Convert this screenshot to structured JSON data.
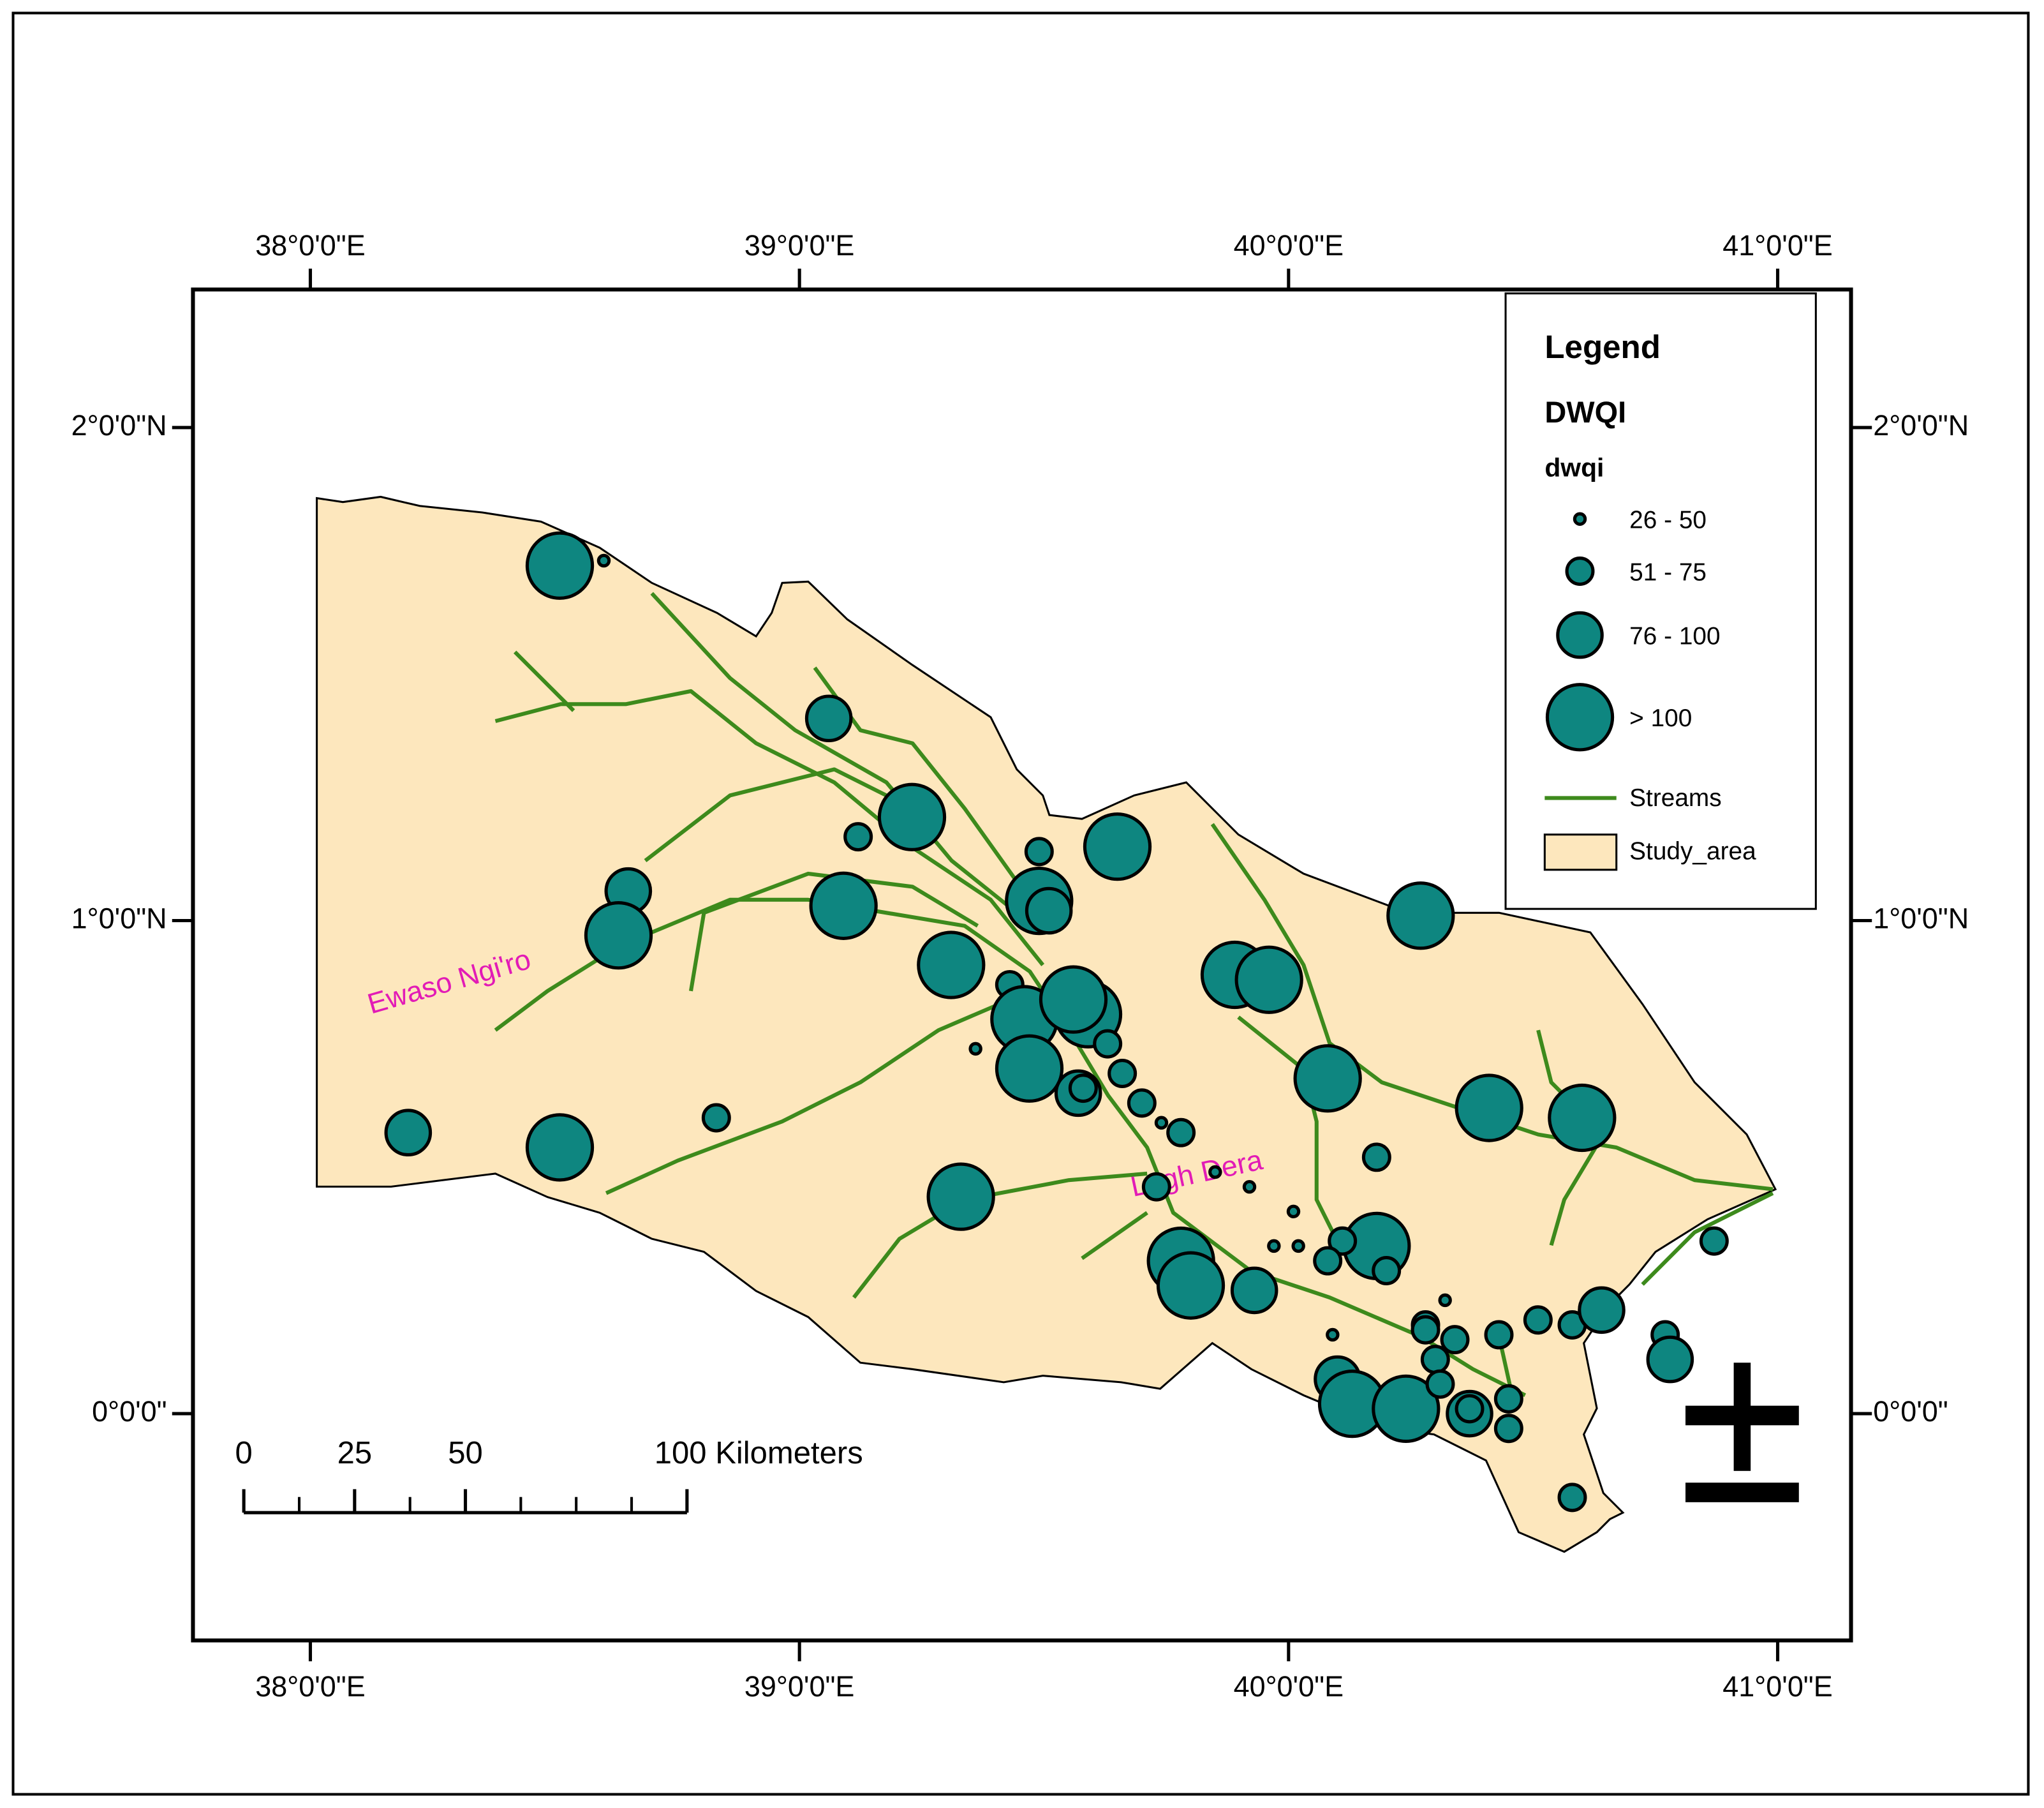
{
  "map": {
    "xlim": [
      37.76,
      41.15
    ],
    "ylim": [
      -0.46,
      2.28
    ],
    "x_axis": {
      "ticks": [
        {
          "value": 38,
          "label": "38°0'0\"E"
        },
        {
          "value": 39,
          "label": "39°0'0\"E"
        },
        {
          "value": 40,
          "label": "40°0'0\"E"
        },
        {
          "value": 41,
          "label": "41°0'0\"E"
        }
      ]
    },
    "y_axis": {
      "ticks": [
        {
          "value": 0,
          "label": "0°0'0\""
        },
        {
          "value": 1,
          "label": "1°0'0\"N"
        },
        {
          "value": 2,
          "label": "2°0'0\"N"
        }
      ]
    },
    "legend": {
      "title": "Legend",
      "layer": "DWQI",
      "field": "dwqi",
      "classes": [
        "26 - 50",
        "51 - 75",
        "76 - 100",
        "> 100"
      ],
      "streams": "Streams",
      "study_area": "Study_area"
    },
    "labels": [
      "Ewaso Ngi'ro",
      "Lagh Dera"
    ],
    "scale_bar": {
      "ticks": [
        0,
        25,
        50,
        {
          "value": 100,
          "label": "100 Kilometers"
        }
      ]
    },
    "point_color": "#0e8680",
    "stream_color": "#3d8a1c",
    "area_color": "#fde7bd",
    "label_color": "#e21bb6",
    "points": [
      [
        38.51,
        1.72,
        3
      ],
      [
        38.6,
        1.73,
        0
      ],
      [
        39.06,
        1.41,
        2
      ],
      [
        39.23,
        1.21,
        3
      ],
      [
        39.12,
        1.17,
        1
      ],
      [
        39.65,
        1.15,
        3
      ],
      [
        39.49,
        1.14,
        1
      ],
      [
        38.65,
        1.06,
        2
      ],
      [
        38.63,
        0.97,
        3
      ],
      [
        39.09,
        1.03,
        3
      ],
      [
        39.49,
        1.04,
        3
      ],
      [
        39.51,
        1.02,
        2
      ],
      [
        40.27,
        1.01,
        3
      ],
      [
        39.31,
        0.91,
        3
      ],
      [
        39.89,
        0.89,
        3
      ],
      [
        39.96,
        0.88,
        3
      ],
      [
        39.43,
        0.87,
        1
      ],
      [
        39.46,
        0.8,
        3
      ],
      [
        39.59,
        0.81,
        3
      ],
      [
        39.56,
        0.84,
        3
      ],
      [
        39.63,
        0.75,
        1
      ],
      [
        39.36,
        0.74,
        0
      ],
      [
        39.47,
        0.7,
        3
      ],
      [
        40.08,
        0.68,
        3
      ],
      [
        39.66,
        0.69,
        1
      ],
      [
        39.57,
        0.65,
        2
      ],
      [
        39.58,
        0.66,
        1
      ],
      [
        39.7,
        0.63,
        1
      ],
      [
        40.41,
        0.62,
        3
      ],
      [
        40.6,
        0.6,
        3
      ],
      [
        38.2,
        0.57,
        2
      ],
      [
        38.51,
        0.54,
        3
      ],
      [
        38.83,
        0.6,
        1
      ],
      [
        39.78,
        0.57,
        1
      ],
      [
        39.74,
        0.59,
        0
      ],
      [
        40.18,
        0.52,
        1
      ],
      [
        39.73,
        0.46,
        1
      ],
      [
        39.85,
        0.49,
        0
      ],
      [
        39.92,
        0.46,
        0
      ],
      [
        39.33,
        0.44,
        3
      ],
      [
        40.01,
        0.41,
        0
      ],
      [
        40.18,
        0.34,
        3
      ],
      [
        40.11,
        0.35,
        1
      ],
      [
        39.97,
        0.34,
        0
      ],
      [
        40.02,
        0.34,
        0
      ],
      [
        39.78,
        0.31,
        3
      ],
      [
        39.8,
        0.26,
        3
      ],
      [
        40.08,
        0.31,
        1
      ],
      [
        40.2,
        0.29,
        1
      ],
      [
        39.93,
        0.25,
        2
      ],
      [
        40.32,
        0.23,
        0
      ],
      [
        40.28,
        0.18,
        1
      ],
      [
        40.28,
        0.17,
        1
      ],
      [
        40.09,
        0.16,
        0
      ],
      [
        40.43,
        0.16,
        1
      ],
      [
        40.51,
        0.19,
        1
      ],
      [
        40.58,
        0.18,
        1
      ],
      [
        40.64,
        0.21,
        2
      ],
      [
        40.34,
        0.15,
        1
      ],
      [
        40.3,
        0.11,
        1
      ],
      [
        40.77,
        0.16,
        1
      ],
      [
        40.78,
        0.11,
        2
      ],
      [
        40.87,
        0.35,
        1
      ],
      [
        40.1,
        0.07,
        2
      ],
      [
        40.13,
        0.02,
        3
      ],
      [
        40.24,
        0.01,
        3
      ],
      [
        40.31,
        0.06,
        1
      ],
      [
        40.37,
        0.0,
        2
      ],
      [
        40.37,
        0.01,
        1
      ],
      [
        40.45,
        0.03,
        1
      ],
      [
        40.45,
        -0.03,
        1
      ],
      [
        40.58,
        -0.17,
        1
      ]
    ]
  }
}
